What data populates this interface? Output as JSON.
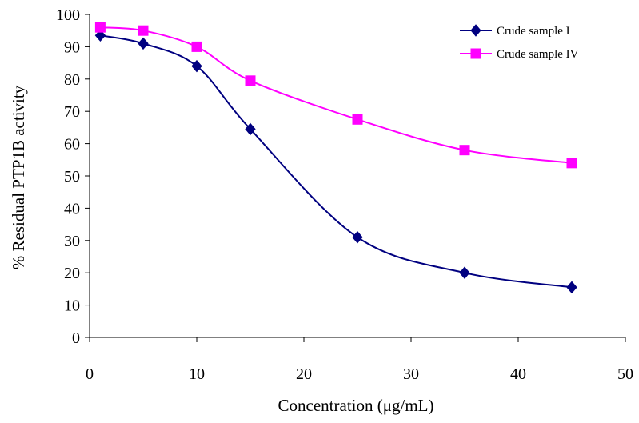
{
  "chart_data": {
    "type": "line",
    "title": "",
    "xlabel": "Concentration (μg/mL)",
    "ylabel": "% Residual PTP1B activity",
    "xlim": [
      0,
      50
    ],
    "ylim": [
      0,
      100
    ],
    "x_ticks": [
      "0",
      "10",
      "20",
      "30",
      "40",
      "50"
    ],
    "y_ticks": [
      "0",
      "10",
      "20",
      "30",
      "40",
      "50",
      "60",
      "70",
      "80",
      "90",
      "100"
    ],
    "grid": false,
    "legend_position": "top-right",
    "series": [
      {
        "name": "Crude sample I",
        "color": "#000080",
        "marker": "diamond",
        "x": [
          1,
          5,
          10,
          15,
          25,
          35,
          45
        ],
        "y": [
          93.5,
          91,
          84,
          64.5,
          31,
          20,
          15.5
        ]
      },
      {
        "name": "Crude sample IV",
        "color": "#FF00FF",
        "marker": "square",
        "x": [
          1,
          5,
          10,
          15,
          25,
          35,
          45
        ],
        "y": [
          96,
          95,
          90,
          79.5,
          67.5,
          58,
          54
        ]
      }
    ]
  }
}
